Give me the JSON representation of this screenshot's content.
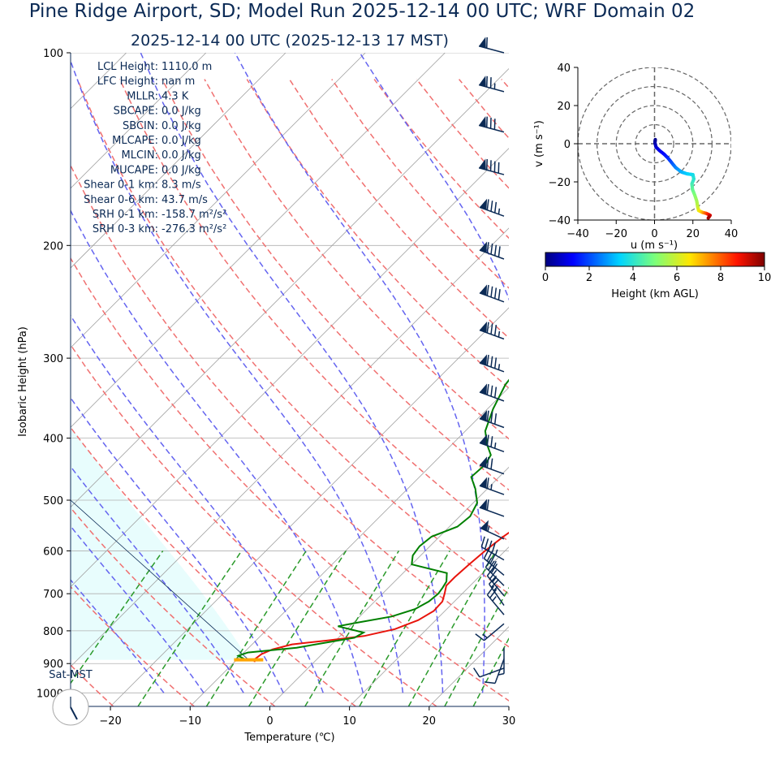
{
  "header": {
    "title": "Pine Ridge Airport, SD; Model Run 2025-12-14 00 UTC; WRF Domain 02",
    "subtitle": "2025-12-14 00 UTC  (2025-12-13 17 MST)"
  },
  "params": [
    {
      "label": "LCL Height",
      "value": "1110.0 m"
    },
    {
      "label": "LFC Height",
      "value": "nan m"
    },
    {
      "label": "MLLR",
      "value": "4.3 K"
    },
    {
      "label": "SBCAPE",
      "value": "0.0 J/kg"
    },
    {
      "label": "SBCIN",
      "value": "0.0 J/kg"
    },
    {
      "label": "MLCAPE",
      "value": "0.0 J/kg"
    },
    {
      "label": "MLCIN",
      "value": "0.0 J/kg"
    },
    {
      "label": "MUCAPE",
      "value": "0.0 J/kg"
    },
    {
      "label": "Shear 0-1 km",
      "value": "8.3 m/s"
    },
    {
      "label": "Shear 0-6 km",
      "value": "43.7 m/s"
    },
    {
      "label": "SRH 0-1 km",
      "value": "-158.7 m²/s²"
    },
    {
      "label": "SRH 0-3 km",
      "value": "-276.3 m²/s²"
    }
  ],
  "clock_label": "Sat-MST",
  "colors": {
    "temperature": "#e8140c",
    "dewpoint": "#008000",
    "dry_adiabat": "#f07070",
    "moist_adiabat": "#6464f0",
    "mixing_ratio": "#2a9a2a",
    "cape_shade": "#e8fdfd",
    "isotherm": "#a0a0a0",
    "isobar": "#b0b0b0",
    "wind_barb": "#0b2a55",
    "lcl_marker": "#ffa500",
    "text": "#0b2a55"
  },
  "chart_data": [
    {
      "type": "line",
      "subtype": "skew-t log-p",
      "xlabel": "Temperature (℃)",
      "ylabel": "Isobaric Height (hPa)",
      "xlim": [
        -25,
        30
      ],
      "ylim": [
        1050,
        100
      ],
      "y_scale": "log",
      "x_ticks": [
        -20,
        -10,
        0,
        10,
        20,
        30
      ],
      "y_ticks": [
        100,
        200,
        300,
        400,
        500,
        600,
        700,
        800,
        900,
        1000
      ],
      "grid": true,
      "series": [
        {
          "key": "temperature",
          "points": [
            [
              -7.5,
              895
            ],
            [
              -7.8,
              885
            ],
            [
              -7.6,
              870
            ],
            [
              -6.8,
              855
            ],
            [
              -5,
              840
            ],
            [
              -1,
              828
            ],
            [
              3,
              815
            ],
            [
              6,
              795
            ],
            [
              7.8,
              770
            ],
            [
              8.6,
              745
            ],
            [
              8.5,
              720
            ],
            [
              7.8,
              700
            ],
            [
              7,
              680
            ],
            [
              7,
              660
            ],
            [
              7.2,
              630
            ],
            [
              7.5,
              600
            ],
            [
              8,
              570
            ],
            [
              8.8,
              540
            ],
            [
              9.5,
              510
            ],
            [
              9.6,
              480
            ],
            [
              9,
              450
            ],
            [
              8.5,
              430
            ],
            [
              6.5,
              400
            ],
            [
              4,
              370
            ],
            [
              1.5,
              345
            ],
            [
              -1,
              320
            ],
            [
              -2.5,
              300
            ],
            [
              -4.2,
              280
            ],
            [
              -6,
              260
            ],
            [
              -7.5,
              240
            ],
            [
              -8.5,
              225
            ],
            [
              -8.5,
              210
            ],
            [
              -8.5,
              200
            ],
            [
              -8.5,
              193
            ],
            [
              -6.4,
              170
            ],
            [
              -4.2,
              150
            ],
            [
              -1.2,
              133
            ],
            [
              3.1,
              118
            ],
            [
              8.1,
              100
            ]
          ]
        },
        {
          "key": "dewpoint",
          "points": [
            [
              -9.2,
              885
            ],
            [
              -10.3,
              875
            ],
            [
              -9.5,
              865
            ],
            [
              -4,
              850
            ],
            [
              2,
              820
            ],
            [
              2.5,
              805
            ],
            [
              -1.5,
              787
            ],
            [
              0.2,
              778
            ],
            [
              4,
              760
            ],
            [
              6,
              740
            ],
            [
              6.8,
              720
            ],
            [
              7,
              700
            ],
            [
              6.8,
              685
            ],
            [
              6.5,
              670
            ],
            [
              5.5,
              650
            ],
            [
              0,
              630
            ],
            [
              -1,
              610
            ],
            [
              -1.3,
              590
            ],
            [
              -1,
              570
            ],
            [
              1,
              550
            ],
            [
              1.3,
              530
            ],
            [
              0.5,
              505
            ],
            [
              -1.5,
              480
            ],
            [
              -3.5,
              460
            ],
            [
              -3.3,
              440
            ],
            [
              -3.8,
              425
            ],
            [
              -5.5,
              410
            ],
            [
              -7.5,
              390
            ],
            [
              -9.3,
              360
            ],
            [
              -10.8,
              330
            ],
            [
              -11.4,
              305
            ],
            [
              -11.7,
              280
            ],
            [
              -11.7,
              250
            ],
            [
              -12,
              230
            ],
            [
              -12.2,
              210
            ],
            [
              -12.3,
              195
            ],
            [
              -12.3,
              180
            ],
            [
              -12.4,
              170
            ],
            [
              -12.4,
              160
            ],
            [
              -12.3,
              150
            ],
            [
              -11.8,
              140
            ],
            [
              -9.6,
              130
            ],
            [
              -6.3,
              120
            ],
            [
              -2.1,
              110
            ],
            [
              1.6,
              100
            ]
          ]
        }
      ],
      "lcl_pressure": 888,
      "lcl_temperature": -8.5,
      "wind_barbs": [
        {
          "p": 100,
          "dir": 285,
          "spd": 60
        },
        {
          "p": 115,
          "dir": 285,
          "spd": 75
        },
        {
          "p": 133,
          "dir": 285,
          "spd": 80
        },
        {
          "p": 155,
          "dir": 285,
          "spd": 90
        },
        {
          "p": 180,
          "dir": 290,
          "spd": 85
        },
        {
          "p": 210,
          "dir": 290,
          "spd": 90
        },
        {
          "p": 245,
          "dir": 290,
          "spd": 90
        },
        {
          "p": 280,
          "dir": 290,
          "spd": 85
        },
        {
          "p": 315,
          "dir": 290,
          "spd": 85
        },
        {
          "p": 350,
          "dir": 290,
          "spd": 80
        },
        {
          "p": 385,
          "dir": 290,
          "spd": 80
        },
        {
          "p": 420,
          "dir": 290,
          "spd": 75
        },
        {
          "p": 455,
          "dir": 290,
          "spd": 70
        },
        {
          "p": 490,
          "dir": 290,
          "spd": 65
        },
        {
          "p": 530,
          "dir": 290,
          "spd": 60
        },
        {
          "p": 575,
          "dir": 295,
          "spd": 55
        },
        {
          "p": 620,
          "dir": 300,
          "spd": 45
        },
        {
          "p": 655,
          "dir": 310,
          "spd": 35
        },
        {
          "p": 680,
          "dir": 315,
          "spd": 30
        },
        {
          "p": 705,
          "dir": 320,
          "spd": 25
        },
        {
          "p": 730,
          "dir": 325,
          "spd": 25
        },
        {
          "p": 755,
          "dir": 320,
          "spd": 25
        },
        {
          "p": 780,
          "dir": 230,
          "spd": 15
        },
        {
          "p": 850,
          "dir": 180,
          "spd": 5
        },
        {
          "p": 885,
          "dir": 200,
          "spd": 10
        },
        {
          "p": 915,
          "dir": 250,
          "spd": 10
        }
      ]
    },
    {
      "type": "scatter",
      "subtype": "hodograph",
      "xlabel": "u (m s⁻¹)",
      "ylabel": "v (m s⁻¹)",
      "xlim": [
        -40,
        40
      ],
      "ylim": [
        -40,
        40
      ],
      "x_ticks": [
        -40,
        -20,
        0,
        20,
        40
      ],
      "y_ticks": [
        -40,
        -20,
        0,
        20,
        40
      ],
      "rings": [
        10,
        20,
        30,
        40
      ],
      "colorbar": {
        "label": "Height (km AGL)",
        "range": [
          0,
          10
        ],
        "ticks": [
          0,
          2,
          4,
          6,
          8,
          10
        ],
        "cmap": "jet"
      },
      "points": [
        {
          "u": 0.4,
          "v": 2.2,
          "z": 0.05
        },
        {
          "u": 0.2,
          "v": 0.5,
          "z": 0.3
        },
        {
          "u": 0.8,
          "v": -1.8,
          "z": 0.7
        },
        {
          "u": 2.5,
          "v": -3.5,
          "z": 1.0
        },
        {
          "u": 5,
          "v": -5.5,
          "z": 1.3
        },
        {
          "u": 7,
          "v": -7.5,
          "z": 1.6
        },
        {
          "u": 9,
          "v": -10,
          "z": 2.0
        },
        {
          "u": 11,
          "v": -12.5,
          "z": 2.5
        },
        {
          "u": 14,
          "v": -14.8,
          "z": 3.0
        },
        {
          "u": 17,
          "v": -15.8,
          "z": 3.3
        },
        {
          "u": 20,
          "v": -16.2,
          "z": 3.6
        },
        {
          "u": 20.5,
          "v": -18.5,
          "z": 3.9
        },
        {
          "u": 19.5,
          "v": -21,
          "z": 4.2
        },
        {
          "u": 19.8,
          "v": -24,
          "z": 4.6
        },
        {
          "u": 21,
          "v": -27,
          "z": 5.0
        },
        {
          "u": 22,
          "v": -30,
          "z": 5.4
        },
        {
          "u": 22.5,
          "v": -33,
          "z": 5.8
        },
        {
          "u": 23,
          "v": -35,
          "z": 6.2
        },
        {
          "u": 25,
          "v": -36,
          "z": 7.0
        },
        {
          "u": 27,
          "v": -36.5,
          "z": 8.0
        },
        {
          "u": 29,
          "v": -37.5,
          "z": 9.0
        },
        {
          "u": 28,
          "v": -39,
          "z": 9.7
        }
      ]
    }
  ]
}
